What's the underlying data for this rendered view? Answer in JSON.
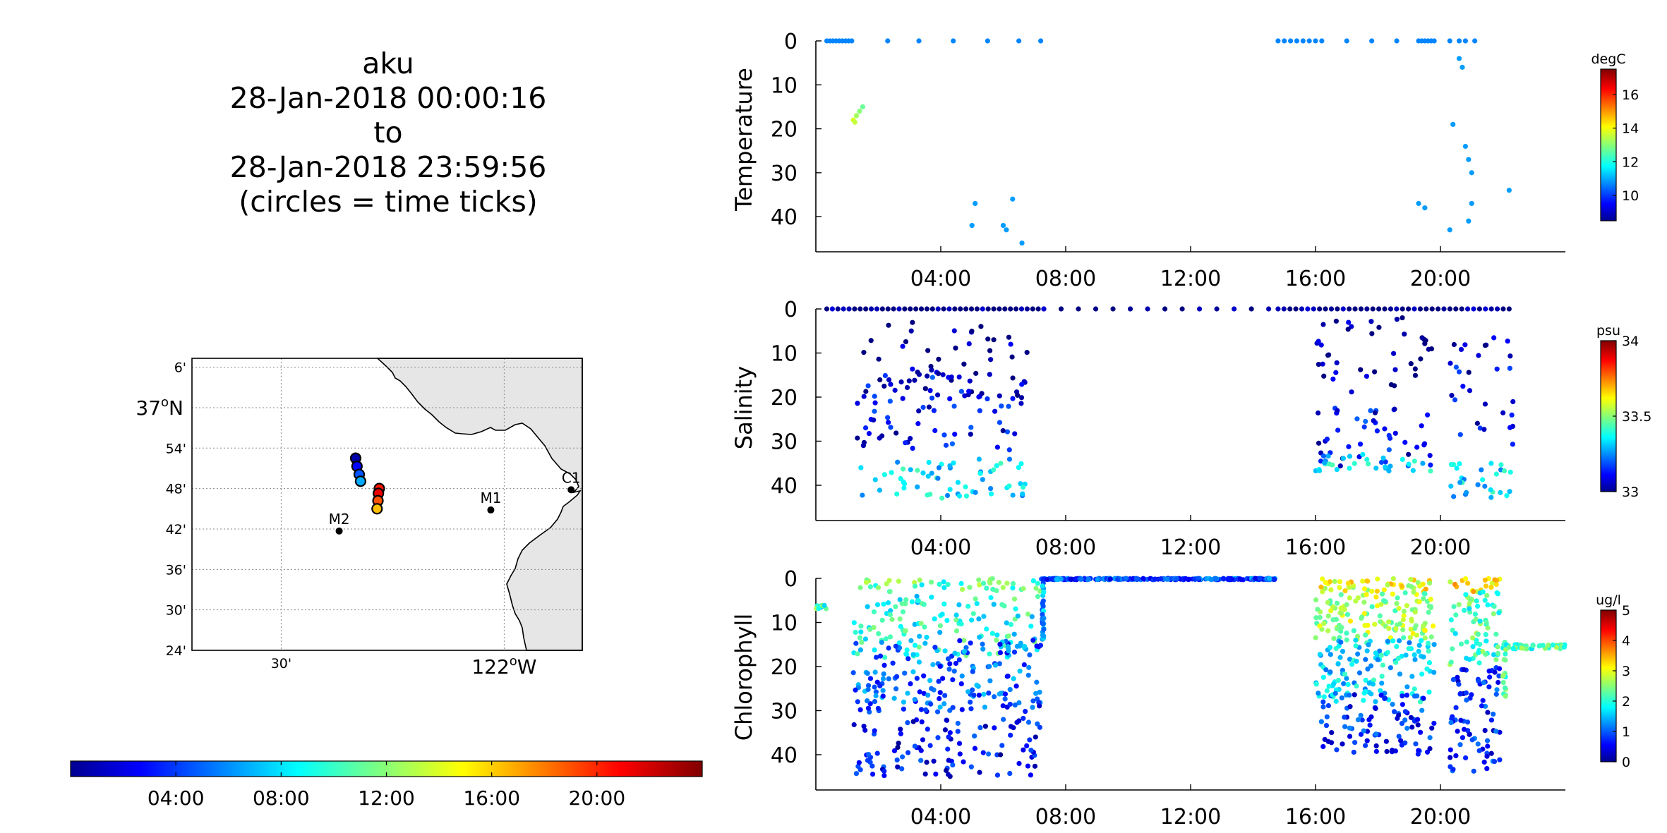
{
  "title": {
    "lines": [
      "aku",
      "28-Jan-2018 00:00:16",
      "to",
      "28-Jan-2018 23:59:56",
      "(circles = time ticks)"
    ]
  },
  "map": {
    "lat_labels": [
      "6'",
      "37°N",
      "54'",
      "48'",
      "42'",
      "36'",
      "30'",
      "24'"
    ],
    "lat_values": [
      37.1,
      37.0,
      36.9,
      36.8,
      36.7,
      36.6,
      36.5,
      36.4
    ],
    "lon_labels": [
      "30'",
      "122°W"
    ],
    "lon_values": [
      -122.5,
      -122.0
    ],
    "stations": [
      {
        "name": "M2",
        "lon": -122.37,
        "lat": 36.695
      },
      {
        "name": "M1",
        "lon": -122.03,
        "lat": 36.747
      },
      {
        "name": "C1",
        "lon": -121.85,
        "lat": 36.797
      }
    ],
    "track": [
      {
        "lon": -122.333,
        "lat": 36.875,
        "hour": 1.0
      },
      {
        "lon": -122.33,
        "lat": 36.855,
        "hour": 3.0
      },
      {
        "lon": -122.325,
        "lat": 36.835,
        "hour": 5.0
      },
      {
        "lon": -122.322,
        "lat": 36.818,
        "hour": 7.0
      },
      {
        "lon": -122.28,
        "lat": 36.8,
        "hour": 20.5
      },
      {
        "lon": -122.282,
        "lat": 36.788,
        "hour": 21.5
      },
      {
        "lon": -122.283,
        "lat": 36.77,
        "hour": 19.0
      },
      {
        "lon": -122.285,
        "lat": 36.75,
        "hour": 16.5
      }
    ]
  },
  "time_colorbar": {
    "ticks": [
      "04:00",
      "08:00",
      "12:00",
      "16:00",
      "20:00"
    ],
    "tick_hours": [
      4,
      8,
      12,
      16,
      20
    ]
  },
  "colors": {
    "jet_low": "#00008f",
    "jet_high": "#800000",
    "axis": "#000000",
    "grid": "#999999",
    "land": "#e6e6e6"
  },
  "chart_data": [
    {
      "type": "scatter",
      "ylabel": "Temperature",
      "unit": "degC",
      "x_ticks": [
        "04:00",
        "08:00",
        "12:00",
        "16:00",
        "20:00"
      ],
      "x_tick_hours": [
        4,
        8,
        12,
        16,
        20
      ],
      "xlim": [
        0,
        24
      ],
      "y_ticks": [
        0,
        10,
        20,
        30,
        40
      ],
      "ylim": [
        0,
        48
      ],
      "y_reversed": true,
      "clim": [
        8.5,
        17.5
      ],
      "cbar_ticks": [
        10,
        12,
        14,
        16
      ],
      "points": [
        [
          0.35,
          0,
          10.8
        ],
        [
          0.45,
          0,
          10.8
        ],
        [
          0.55,
          0,
          10.8
        ],
        [
          0.65,
          0,
          10.8
        ],
        [
          0.75,
          0,
          10.8
        ],
        [
          0.85,
          0,
          10.8
        ],
        [
          0.95,
          0,
          10.8
        ],
        [
          1.05,
          0,
          10.8
        ],
        [
          1.15,
          0,
          10.8
        ],
        [
          2.3,
          0,
          10.8
        ],
        [
          3.3,
          0,
          10.8
        ],
        [
          4.4,
          0,
          10.8
        ],
        [
          5.5,
          0,
          10.8
        ],
        [
          6.5,
          0,
          10.8
        ],
        [
          7.2,
          0,
          10.8
        ],
        [
          1.2,
          18,
          13.8
        ],
        [
          1.3,
          17,
          13.3
        ],
        [
          1.4,
          16,
          13.1
        ],
        [
          1.5,
          15,
          12.8
        ],
        [
          1.25,
          18.5,
          13.6
        ],
        [
          5.0,
          42,
          11.0
        ],
        [
          5.1,
          37,
          11.0
        ],
        [
          6.0,
          42,
          11.0
        ],
        [
          6.1,
          43,
          11.0
        ],
        [
          6.3,
          36,
          11.0
        ],
        [
          6.6,
          46,
          11.0
        ],
        [
          14.8,
          0,
          10.8
        ],
        [
          15.0,
          0,
          10.8
        ],
        [
          15.2,
          0,
          10.8
        ],
        [
          15.4,
          0,
          10.8
        ],
        [
          15.6,
          0,
          10.8
        ],
        [
          15.8,
          0,
          10.8
        ],
        [
          16.0,
          0,
          10.8
        ],
        [
          16.2,
          0,
          10.8
        ],
        [
          17.0,
          0,
          10.8
        ],
        [
          17.8,
          0,
          10.8
        ],
        [
          18.6,
          0,
          10.8
        ],
        [
          19.3,
          0,
          10.8
        ],
        [
          19.4,
          0,
          10.8
        ],
        [
          19.5,
          0,
          10.8
        ],
        [
          19.6,
          0,
          10.8
        ],
        [
          19.7,
          0,
          10.8
        ],
        [
          19.8,
          0,
          10.8
        ],
        [
          20.3,
          0,
          10.8
        ],
        [
          20.6,
          0,
          10.8
        ],
        [
          20.8,
          0,
          10.8
        ],
        [
          21.1,
          0,
          10.8
        ],
        [
          20.6,
          4,
          11.0
        ],
        [
          20.7,
          6,
          11.0
        ],
        [
          20.4,
          19,
          11.0
        ],
        [
          20.8,
          24,
          11.0
        ],
        [
          20.9,
          27,
          11.0
        ],
        [
          21.0,
          30,
          11.0
        ],
        [
          21.0,
          37,
          11.0
        ],
        [
          20.9,
          41,
          11.0
        ],
        [
          20.3,
          43,
          11.0
        ],
        [
          19.3,
          37,
          11.0
        ],
        [
          19.5,
          38,
          11.0
        ],
        [
          22.2,
          34,
          11.0
        ]
      ]
    },
    {
      "type": "scatter",
      "ylabel": "Salinity",
      "unit": "psu",
      "x_ticks": [
        "04:00",
        "08:00",
        "12:00",
        "16:00",
        "20:00"
      ],
      "x_tick_hours": [
        4,
        8,
        12,
        16,
        20
      ],
      "xlim": [
        0,
        24
      ],
      "y_ticks": [
        0,
        10,
        20,
        30,
        40
      ],
      "ylim": [
        0,
        48
      ],
      "y_reversed": true,
      "clim": [
        33.0,
        34.0
      ],
      "cbar_ticks": [
        33,
        33.5,
        34
      ],
      "groups": [
        {
          "t0": 0.35,
          "t1": 7.3,
          "d0": 0,
          "d1": 0,
          "n": 40,
          "v": 32.98
        },
        {
          "t0": 7.3,
          "t1": 14.5,
          "d0": 0,
          "d1": 0,
          "n": 14,
          "v": 32.98
        },
        {
          "t0": 14.8,
          "t1": 22.2,
          "d0": 0,
          "d1": 0,
          "n": 40,
          "v": 32.98
        },
        {
          "t0": 1.3,
          "t1": 6.8,
          "d0": 3,
          "d1": 20,
          "n": 55,
          "v": 33.02
        },
        {
          "t0": 1.3,
          "t1": 6.8,
          "d0": 15,
          "d1": 32,
          "n": 70,
          "v": 33.12
        },
        {
          "t0": 1.3,
          "t1": 6.8,
          "d0": 34,
          "d1": 43,
          "n": 60,
          "v": 33.35
        },
        {
          "t0": 16.0,
          "t1": 19.8,
          "d0": 2,
          "d1": 20,
          "n": 40,
          "v": 33.02
        },
        {
          "t0": 16.0,
          "t1": 19.8,
          "d0": 22,
          "d1": 36,
          "n": 45,
          "v": 33.12
        },
        {
          "t0": 16.0,
          "t1": 19.8,
          "d0": 33,
          "d1": 37,
          "n": 30,
          "v": 33.35
        },
        {
          "t0": 20.3,
          "t1": 22.4,
          "d0": 6,
          "d1": 32,
          "n": 30,
          "v": 33.1
        },
        {
          "t0": 20.3,
          "t1": 22.4,
          "d0": 35,
          "d1": 43,
          "n": 28,
          "v": 33.35
        }
      ]
    },
    {
      "type": "scatter",
      "ylabel": "Chlorophyll",
      "unit": "ug/l",
      "x_ticks": [
        "04:00",
        "08:00",
        "12:00",
        "16:00",
        "20:00"
      ],
      "x_tick_hours": [
        4,
        8,
        12,
        16,
        20
      ],
      "xlim": [
        0,
        24
      ],
      "y_ticks": [
        0,
        10,
        20,
        30,
        40
      ],
      "ylim": [
        0,
        48
      ],
      "y_reversed": true,
      "clim": [
        0,
        5
      ],
      "cbar_ticks": [
        0,
        1,
        2,
        3,
        4,
        5
      ],
      "groups": [
        {
          "t0": 0.0,
          "t1": 0.35,
          "d0": 6,
          "d1": 7,
          "n": 10,
          "v": 2.2
        },
        {
          "t0": 1.2,
          "t1": 7.2,
          "d0": 0,
          "d1": 3,
          "n": 45,
          "v": 2.3
        },
        {
          "t0": 1.2,
          "t1": 7.2,
          "d0": 4,
          "d1": 18,
          "n": 130,
          "v": 2.0
        },
        {
          "t0": 1.2,
          "t1": 7.2,
          "d0": 14,
          "d1": 30,
          "n": 160,
          "v": 1.1
        },
        {
          "t0": 1.2,
          "t1": 7.2,
          "d0": 28,
          "d1": 45,
          "n": 120,
          "v": 0.6
        },
        {
          "t0": 7.2,
          "t1": 14.7,
          "d0": 0,
          "d1": 0.3,
          "n": 260,
          "v": 1.0
        },
        {
          "t0": 7.25,
          "t1": 7.3,
          "d0": 0,
          "d1": 14,
          "n": 30,
          "v": 1.3
        },
        {
          "t0": 16.0,
          "t1": 19.8,
          "d0": 0,
          "d1": 3,
          "n": 45,
          "v": 3.0
        },
        {
          "t0": 16.0,
          "t1": 19.8,
          "d0": 3,
          "d1": 14,
          "n": 130,
          "v": 2.7
        },
        {
          "t0": 16.0,
          "t1": 19.8,
          "d0": 14,
          "d1": 28,
          "n": 130,
          "v": 1.7
        },
        {
          "t0": 16.0,
          "t1": 19.8,
          "d0": 26,
          "d1": 40,
          "n": 90,
          "v": 0.8
        },
        {
          "t0": 20.3,
          "t1": 21.9,
          "d0": 0,
          "d1": 3,
          "n": 20,
          "v": 3.2
        },
        {
          "t0": 20.3,
          "t1": 21.9,
          "d0": 3,
          "d1": 20,
          "n": 70,
          "v": 2.2
        },
        {
          "t0": 20.3,
          "t1": 21.9,
          "d0": 20,
          "d1": 44,
          "n": 80,
          "v": 0.8
        },
        {
          "t0": 22.0,
          "t1": 22.1,
          "d0": 14,
          "d1": 27,
          "n": 18,
          "v": 2.2
        },
        {
          "t0": 22.1,
          "t1": 24.0,
          "d0": 15,
          "d1": 16,
          "n": 40,
          "v": 2.2
        }
      ]
    }
  ]
}
